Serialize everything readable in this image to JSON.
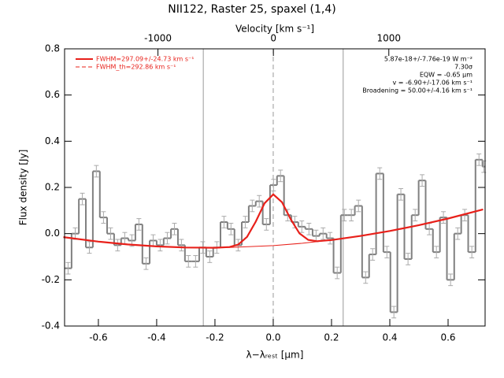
{
  "chart_data": {
    "type": "histogram",
    "title": "NII122, Raster 25, spaxel (1,4)",
    "xlabel": "λ−λᵣₑₛₜ [μm]",
    "ylabel": "Flux density [Jy]",
    "x2label": "Velocity [km s⁻¹]",
    "color": "#808080",
    "bins": [
      -0.716,
      -0.692,
      -0.667,
      -0.643,
      -0.619,
      -0.595,
      -0.57,
      -0.546,
      -0.522,
      -0.497,
      -0.473,
      -0.449,
      -0.424,
      -0.4,
      -0.376,
      -0.351,
      -0.327,
      -0.303,
      -0.279,
      -0.254,
      -0.23,
      -0.206,
      -0.181,
      -0.157,
      -0.133,
      -0.108,
      -0.084,
      -0.06,
      -0.036,
      -0.011,
      0.013,
      0.037,
      0.062,
      0.086,
      0.11,
      0.135,
      0.159,
      0.183,
      0.207,
      0.232,
      0.256,
      0.28,
      0.305,
      0.329,
      0.353,
      0.378,
      0.402,
      0.426,
      0.45,
      0.475,
      0.499,
      0.523,
      0.548,
      0.572,
      0.596,
      0.621,
      0.645,
      0.669,
      0.694,
      0.718,
      0.727
    ],
    "values": [
      -0.15,
      0.0,
      0.15,
      -0.06,
      0.27,
      0.07,
      0.0,
      -0.05,
      -0.02,
      -0.03,
      0.04,
      -0.13,
      -0.03,
      -0.05,
      -0.02,
      0.02,
      -0.05,
      -0.12,
      -0.12,
      -0.06,
      -0.1,
      -0.06,
      0.05,
      0.02,
      -0.05,
      0.05,
      0.12,
      0.14,
      0.04,
      0.21,
      0.25,
      0.08,
      0.05,
      0.03,
      0.02,
      -0.01,
      0.0,
      -0.02,
      -0.17,
      0.08,
      0.08,
      0.12,
      -0.19,
      -0.09,
      0.26,
      -0.08,
      -0.34,
      0.17,
      -0.11,
      0.08,
      0.23,
      0.02,
      -0.08,
      0.07,
      -0.2,
      0.0,
      0.08,
      -0.08,
      0.32,
      0.29
    ],
    "errors": [
      0.025,
      0.025,
      0.025,
      0.025,
      0.025,
      0.025,
      0.025,
      0.025,
      0.025,
      0.025,
      0.025,
      0.025,
      0.025,
      0.025,
      0.025,
      0.025,
      0.025,
      0.025,
      0.025,
      0.025,
      0.025,
      0.025,
      0.025,
      0.025,
      0.025,
      0.025,
      0.025,
      0.025,
      0.025,
      0.025,
      0.025,
      0.025,
      0.025,
      0.025,
      0.025,
      0.025,
      0.025,
      0.025,
      0.025,
      0.025,
      0.025,
      0.025,
      0.025,
      0.025,
      0.025,
      0.025,
      0.025,
      0.025,
      0.025,
      0.025,
      0.025,
      0.025,
      0.025,
      0.025,
      0.025,
      0.025,
      0.025,
      0.025,
      0.025,
      0.025
    ],
    "curves": [
      {
        "color": "#e8201a",
        "x": [
          -0.72,
          -0.6,
          -0.5,
          -0.4,
          -0.3,
          -0.2,
          -0.15,
          -0.12,
          -0.09,
          -0.06,
          -0.03,
          0,
          0.03,
          0.06,
          0.09,
          0.12,
          0.15,
          0.2,
          0.3,
          0.4,
          0.5,
          0.6,
          0.72
        ],
        "values": [
          -0.015,
          -0.0346,
          -0.0468,
          -0.0552,
          -0.06,
          -0.061,
          -0.058,
          -0.047,
          -0.014,
          0.052,
          0.131,
          0.17,
          0.136,
          0.062,
          0.001,
          -0.027,
          -0.033,
          -0.0276,
          -0.01,
          0.0114,
          0.0366,
          0.0654,
          0.105
        ]
      },
      {
        "color": "#e8201a",
        "x": [
          -0.3,
          -0.15,
          0,
          0.1,
          0.2
        ],
        "values": [
          -0.06,
          -0.0601,
          -0.0518,
          -0.0416,
          -0.0276
        ]
      }
    ],
    "legend": [
      {
        "label": "FWHM=297.09+/-24.73 km s⁻¹",
        "color": "#e8201a",
        "dash": false
      },
      {
        "label": "FWHM_th=292.86 km s⁻¹",
        "color": "#e8201a",
        "dash": true
      }
    ],
    "annotations": [
      "5.87e-18+/-7.76e-19 W m⁻²",
      "7.30σ",
      "EQW = -0.65 μm",
      "v = -6.90+/-17.06 km s⁻¹",
      "Broadening = 50.00+/-4.16 km s⁻¹"
    ],
    "vlines": [
      {
        "value": -0.24,
        "dash": false
      },
      {
        "value": 0,
        "dash": true
      },
      {
        "value": 0.24,
        "dash": false
      }
    ],
    "xlim": [
      -0.716,
      0.727
    ],
    "ylim": [
      -0.4,
      0.8
    ],
    "xticks": [
      -0.6,
      -0.4,
      -0.2,
      {
        "value": 0,
        "label": "0.0"
      },
      0.2,
      0.4,
      0.6
    ],
    "yticks": [
      -0.4,
      -0.2,
      {
        "value": 0,
        "label": "0.0"
      },
      0.2,
      0.4,
      0.6,
      0.8
    ],
    "x2lim": [
      -1809,
      1834
    ],
    "x2ticks": [
      -1000,
      0,
      1000
    ]
  }
}
